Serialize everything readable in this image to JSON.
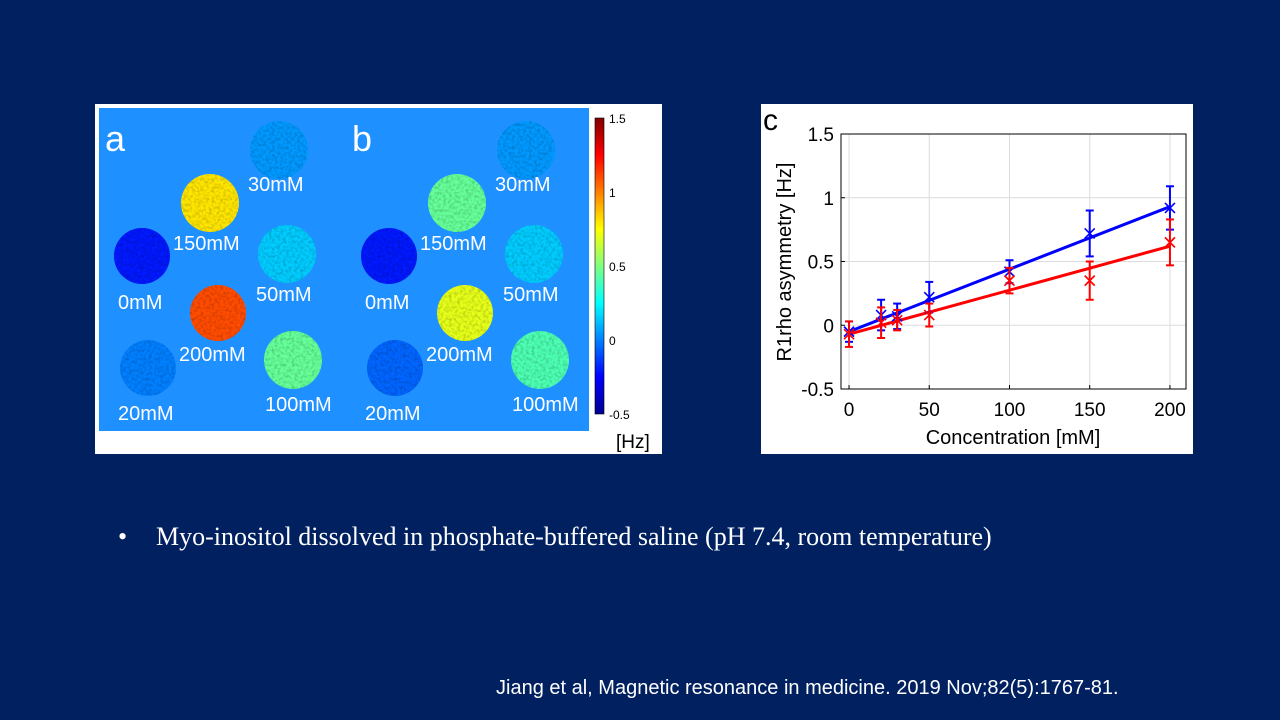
{
  "slide": {
    "bullet_symbol": "•",
    "bullet_text": "Myo-inositol dissolved in phosphate-buffered saline (pH 7.4, room temperature)",
    "citation": "Jiang et al, Magnetic resonance in medicine. 2019 Nov;82(5):1767-81."
  },
  "maps": {
    "panel_a_label": "a",
    "panel_b_label": "b",
    "colorbar": {
      "ticks": [
        "1.5",
        "1",
        "0.5",
        "0",
        "-0.5"
      ],
      "unit": "[Hz]",
      "range": [
        -0.5,
        1.5
      ],
      "colors": [
        "#00008f",
        "#0000ff",
        "#0080ff",
        "#00ffff",
        "#80ff80",
        "#ffff00",
        "#ff8000",
        "#ff0000",
        "#800000"
      ]
    },
    "background_color": "#1e90ff",
    "panel_a_phantoms": [
      {
        "label": "30mM",
        "value": 0.05
      },
      {
        "label": "150mM",
        "value": 0.8
      },
      {
        "label": "0mM",
        "value": -0.2
      },
      {
        "label": "50mM",
        "value": 0.15
      },
      {
        "label": "200mM",
        "value": 1.1
      },
      {
        "label": "20mM",
        "value": 0.0
      },
      {
        "label": "100mM",
        "value": 0.45
      }
    ],
    "panel_b_phantoms": [
      {
        "label": "30mM",
        "value": 0.05
      },
      {
        "label": "150mM",
        "value": 0.45
      },
      {
        "label": "0mM",
        "value": -0.2
      },
      {
        "label": "50mM",
        "value": 0.15
      },
      {
        "label": "200mM",
        "value": 0.7
      },
      {
        "label": "20mM",
        "value": -0.05
      },
      {
        "label": "100mM",
        "value": 0.4
      }
    ]
  },
  "chart_data": {
    "type": "scatter",
    "panel_label": "c",
    "xlabel": "Concentration [mM]",
    "ylabel": "R1rho asymmetry [Hz]",
    "xlim": [
      -5,
      210
    ],
    "ylim": [
      -0.5,
      1.5
    ],
    "xticks": [
      0,
      50,
      100,
      150,
      200
    ],
    "yticks": [
      -0.5,
      0,
      0.5,
      1,
      1.5
    ],
    "grid": true,
    "series": [
      {
        "name": "blue",
        "color": "#0000ff",
        "x": [
          0,
          20,
          30,
          50,
          100,
          150,
          200
        ],
        "y": [
          -0.05,
          0.08,
          0.07,
          0.22,
          0.42,
          0.72,
          0.92
        ],
        "err": [
          0.08,
          0.12,
          0.1,
          0.12,
          0.09,
          0.18,
          0.17
        ],
        "fit": {
          "x": [
            0,
            200
          ],
          "y": [
            -0.05,
            0.93
          ]
        }
      },
      {
        "name": "red",
        "color": "#ff0000",
        "x": [
          0,
          20,
          30,
          50,
          100,
          150,
          200
        ],
        "y": [
          -0.07,
          0.02,
          0.04,
          0.08,
          0.35,
          0.35,
          0.65
        ],
        "err": [
          0.1,
          0.12,
          0.08,
          0.09,
          0.1,
          0.15,
          0.18
        ],
        "fit": {
          "x": [
            0,
            200
          ],
          "y": [
            -0.07,
            0.62
          ]
        }
      }
    ]
  }
}
